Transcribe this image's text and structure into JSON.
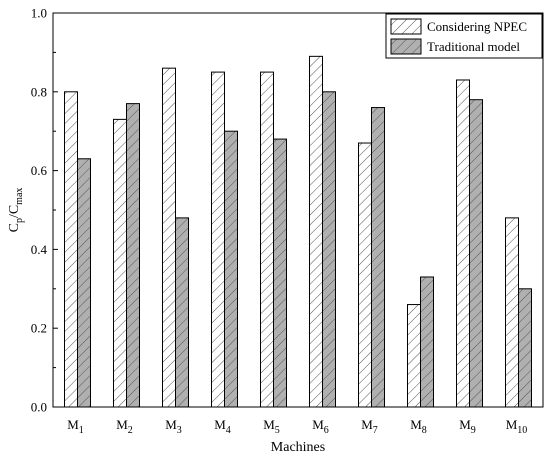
{
  "chart_data": {
    "type": "bar",
    "categories": [
      {
        "base": "M",
        "sub": "1"
      },
      {
        "base": "M",
        "sub": "2"
      },
      {
        "base": "M",
        "sub": "3"
      },
      {
        "base": "M",
        "sub": "4"
      },
      {
        "base": "M",
        "sub": "5"
      },
      {
        "base": "M",
        "sub": "6"
      },
      {
        "base": "M",
        "sub": "7"
      },
      {
        "base": "M",
        "sub": "8"
      },
      {
        "base": "M",
        "sub": "9"
      },
      {
        "base": "M",
        "sub": "10"
      }
    ],
    "series": [
      {
        "name": "Considering NPEC",
        "pattern": "light-hatch",
        "fill": "#ffffff",
        "values": [
          0.8,
          0.73,
          0.86,
          0.85,
          0.85,
          0.89,
          0.67,
          0.26,
          0.83,
          0.48
        ]
      },
      {
        "name": "Traditional model",
        "pattern": "dark-hatch",
        "fill": "#b0b0b0",
        "values": [
          0.63,
          0.77,
          0.48,
          0.7,
          0.68,
          0.8,
          0.76,
          0.33,
          0.78,
          0.3
        ]
      }
    ],
    "xlabel": "Machines",
    "ylabel": {
      "parts": [
        {
          "text": "C",
          "sub": "p"
        },
        {
          "text": "/C",
          "sub": "max"
        }
      ]
    },
    "ylim": [
      0,
      1.0
    ],
    "yticks": [
      "0.0",
      "0.2",
      "0.4",
      "0.6",
      "0.8",
      "1.0"
    ],
    "grid": false,
    "legend_position": "top-right"
  }
}
